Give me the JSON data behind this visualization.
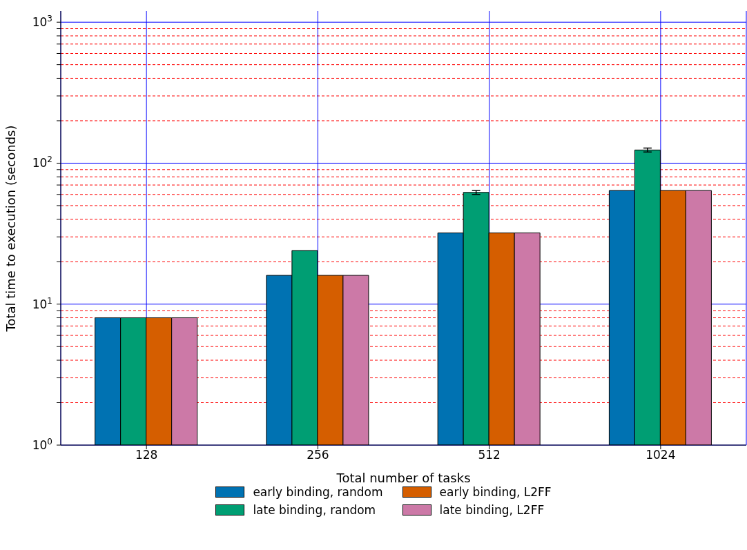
{
  "chart_data": {
    "type": "bar",
    "xlabel": "Total number of tasks",
    "ylabel": "Total time to execution (seconds)",
    "categories": [
      "128",
      "256",
      "512",
      "1024"
    ],
    "series": [
      {
        "name": "early binding, random",
        "color": "#0072b2",
        "values": [
          8,
          16,
          32,
          64
        ]
      },
      {
        "name": "late binding, random",
        "color": "#009e73",
        "values": [
          8,
          24,
          62,
          124
        ],
        "errors": [
          null,
          null,
          2,
          4
        ]
      },
      {
        "name": "early binding, L2FF",
        "color": "#d55e00",
        "values": [
          8,
          16,
          32,
          64
        ]
      },
      {
        "name": "late binding, L2FF",
        "color": "#cc79a7",
        "values": [
          8,
          16,
          32,
          64
        ]
      }
    ],
    "log": true,
    "ylim": [
      1,
      1200
    ],
    "yticks": [
      {
        "value": 1,
        "label": "10$^{0}$"
      },
      {
        "value": 2,
        "label": null
      },
      {
        "value": 3,
        "label": null
      },
      {
        "value": 4,
        "label": null
      },
      {
        "value": 5,
        "label": null
      },
      {
        "value": 6,
        "label": null
      },
      {
        "value": 7,
        "label": null
      },
      {
        "value": 8,
        "label": null
      },
      {
        "value": 9,
        "label": null
      },
      {
        "value": 10,
        "label": "10$^{1}$"
      },
      {
        "value": 20,
        "label": null
      },
      {
        "value": 30,
        "label": null
      },
      {
        "value": 40,
        "label": null
      },
      {
        "value": 50,
        "label": null
      },
      {
        "value": 60,
        "label": null
      },
      {
        "value": 70,
        "label": null
      },
      {
        "value": 80,
        "label": null
      },
      {
        "value": 90,
        "label": null
      },
      {
        "value": 100,
        "label": "10$^{2}$"
      },
      {
        "value": 200,
        "label": null
      },
      {
        "value": 300,
        "label": null
      },
      {
        "value": 400,
        "label": null
      },
      {
        "value": 500,
        "label": null
      },
      {
        "value": 600,
        "label": null
      },
      {
        "value": 700,
        "label": null
      },
      {
        "value": 800,
        "label": null
      },
      {
        "value": 900,
        "label": null
      },
      {
        "value": 1000,
        "label": "10$^{3}$"
      }
    ],
    "grid": true,
    "legend": "bottom"
  }
}
